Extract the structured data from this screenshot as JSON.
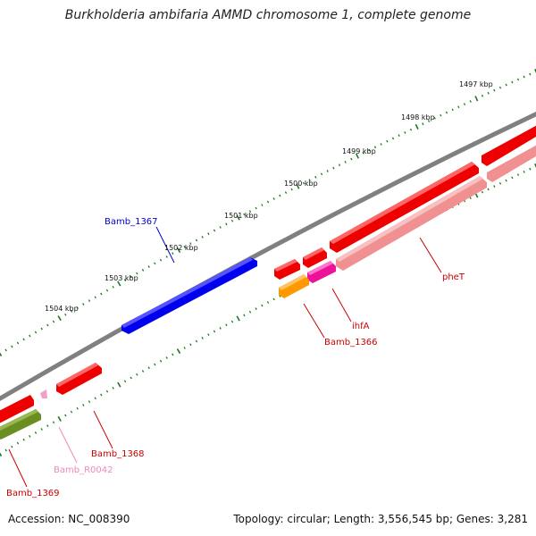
{
  "title": "Burkholderia ambifaria AMMD chromosome 1, complete genome",
  "accession_label": "Accession: NC_008390",
  "summary_label": "Topology: circular; Length: 3,556,545 bp; Genes: 3,281",
  "ticks": [
    {
      "label": "1497 kbp"
    },
    {
      "label": "1498 kbp"
    },
    {
      "label": "1499 kbp"
    },
    {
      "label": "1500 kbp"
    },
    {
      "label": "1501 kbp"
    },
    {
      "label": "1502 kbp"
    },
    {
      "label": "1503 kbp"
    },
    {
      "label": "1504 kbp"
    }
  ],
  "genes": [
    {
      "name": "Bamb_1367",
      "color": "#0000ee"
    },
    {
      "name": "pheT",
      "color": "#dd0000"
    },
    {
      "name": "ihfA",
      "color": "#dd0000"
    },
    {
      "name": "Bamb_1366",
      "color": "#dd0000"
    },
    {
      "name": "Bamb_1368",
      "color": "#dd0000"
    },
    {
      "name": "Bamb_R0042",
      "color": "#ee88bb"
    },
    {
      "name": "Bamb_1369",
      "color": "#dd0000"
    }
  ],
  "colors": {
    "backbone": "#808080",
    "tick": "#1a7a1a",
    "cds_red": "#ee0000",
    "cds_light_red": "#f09090",
    "cds_magenta": "#ee1199",
    "cds_orange": "#ff9900",
    "cds_olive": "#6b8e23",
    "cds_blue": "#0000ee",
    "rna_pink": "#f0a0c8"
  }
}
